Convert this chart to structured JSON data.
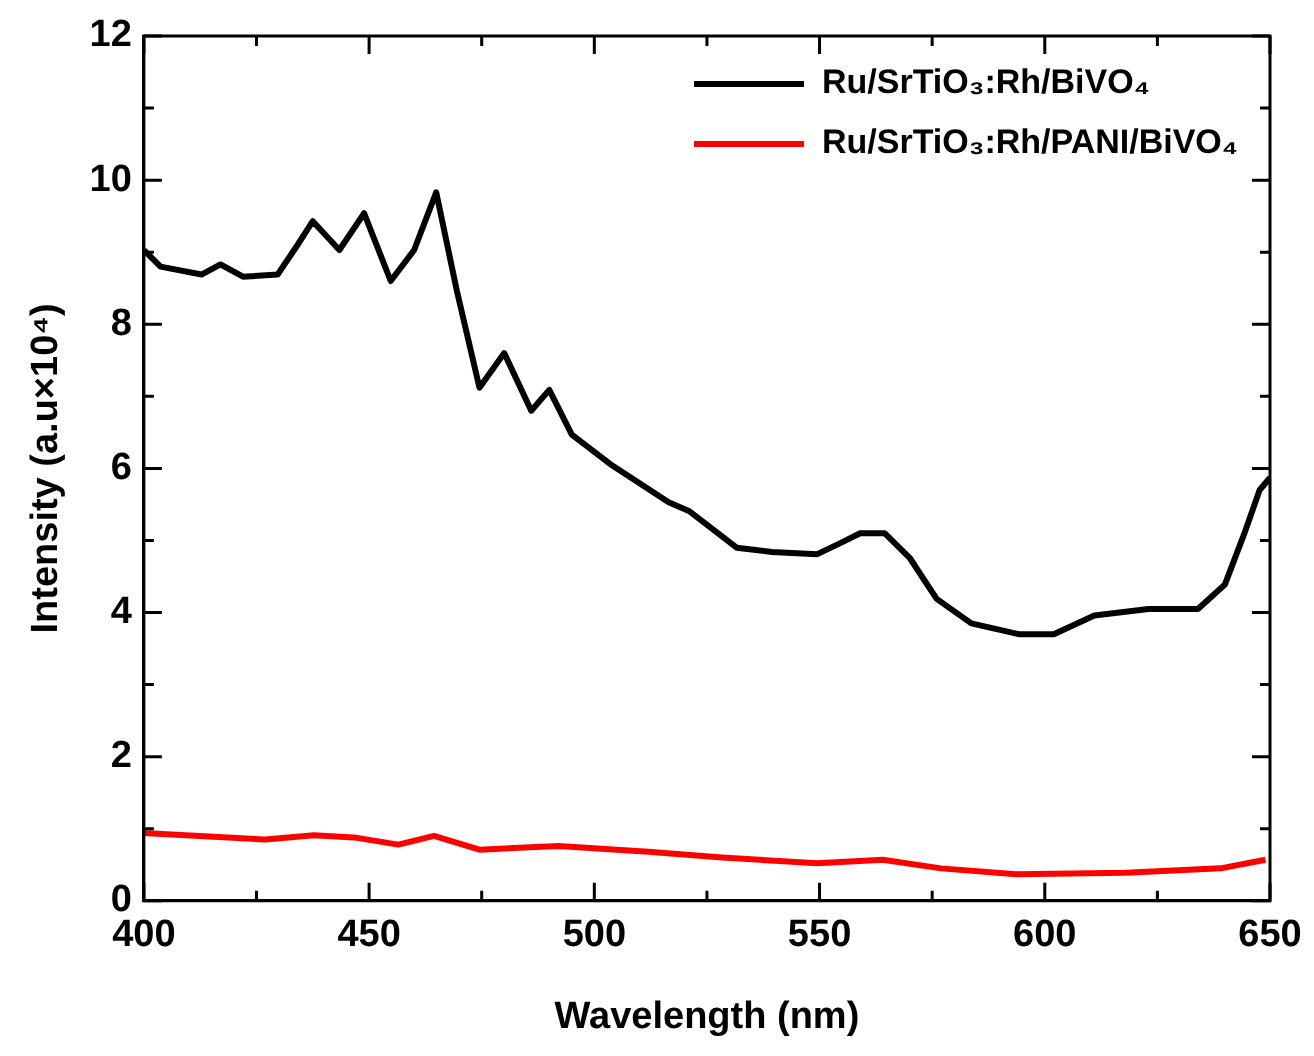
{
  "chart_data": {
    "type": "line",
    "xlabel": "Wavelength (nm)",
    "ylabel": "Intensity (a.u×10⁴)",
    "xlim": [
      400,
      650
    ],
    "ylim": [
      0,
      12
    ],
    "xticks": [
      400,
      {
        "value": 425,
        "label": null
      },
      450,
      {
        "value": 475,
        "label": null
      },
      500,
      {
        "value": 525,
        "label": null
      },
      550,
      {
        "value": 575,
        "label": null
      },
      600,
      {
        "value": 625,
        "label": null
      },
      650
    ],
    "yticks": [
      0,
      {
        "value": 1,
        "label": null
      },
      2,
      {
        "value": 3,
        "label": null
      },
      4,
      {
        "value": 5,
        "label": null
      },
      6,
      {
        "value": 7,
        "label": null
      },
      8,
      {
        "value": 9,
        "label": null
      },
      10,
      {
        "value": 11,
        "label": null
      },
      12
    ],
    "grid": false,
    "legend": "top right",
    "marker": "none",
    "line_style": "solid",
    "series": [
      {
        "name": "Ru/SrTiO₃:Rh/BiVO₄",
        "color": "#000000",
        "x": [
          400,
          403.7,
          412.8,
          417,
          422,
          429.7,
          434,
          437.5,
          443.4,
          448.9,
          454.8,
          460,
          464.9,
          469.5,
          474.5,
          480,
          486,
          490,
          495,
          504,
          516.5,
          521,
          531.6,
          539.4,
          549.5,
          554.5,
          559,
          564.5,
          570,
          576,
          583.7,
          594.2,
          602,
          611,
          623,
          634,
          640,
          644.5,
          647.7,
          650
        ],
        "values": [
          9.03,
          8.8,
          8.69,
          8.83,
          8.66,
          8.69,
          9.09,
          9.43,
          9.03,
          9.54,
          8.6,
          9.03,
          9.83,
          8.46,
          7.12,
          7.6,
          6.8,
          7.09,
          6.47,
          6.04,
          5.53,
          5.41,
          4.9,
          4.84,
          4.81,
          4.96,
          5.1,
          5.1,
          4.76,
          4.19,
          3.85,
          3.7,
          3.7,
          3.96,
          4.05,
          4.05,
          4.39,
          5.13,
          5.7,
          5.87
        ]
      },
      {
        "name": "Ru/SrTiO₃:Rh/PANI/BiVO₄",
        "color": "#ff0000",
        "x": [
          400,
          427,
          437.7,
          446.6,
          456.5,
          464.4,
          474.5,
          492,
          512,
          528.4,
          549.5,
          564,
          577,
          593.6,
          618,
          639,
          649
        ],
        "values": [
          0.94,
          0.85,
          0.91,
          0.88,
          0.78,
          0.9,
          0.71,
          0.76,
          0.68,
          0.6,
          0.52,
          0.57,
          0.45,
          0.37,
          0.39,
          0.45,
          0.57
        ]
      }
    ]
  }
}
